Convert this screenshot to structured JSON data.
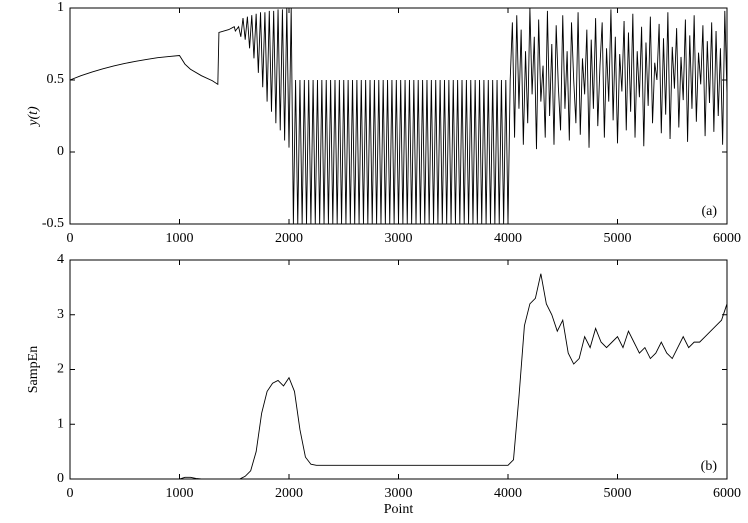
{
  "chart_data": [
    {
      "type": "line",
      "ylabel": "y(t)",
      "annotation": "(a)",
      "color": "#000000",
      "xlim": [
        0,
        6000
      ],
      "xticks": [
        0,
        1000,
        2000,
        3000,
        4000,
        5000,
        6000
      ],
      "ylim": [
        -0.5,
        1
      ],
      "yticks": [
        -0.5,
        0,
        0.5,
        1
      ],
      "x": [
        0,
        100,
        200,
        300,
        400,
        500,
        600,
        700,
        800,
        900,
        1000,
        1050,
        1100,
        1200,
        1300,
        1350,
        1360,
        1450,
        1500,
        1510,
        1540,
        1560,
        1580,
        1600,
        1620,
        1640,
        1660,
        1680,
        1700,
        1720,
        1740,
        1760,
        1780,
        1800,
        1820,
        1840,
        1860,
        1880,
        1900,
        1920,
        1940,
        1960,
        1980,
        2000,
        2020,
        2040,
        2060,
        2080,
        2100,
        2120,
        2140,
        2160,
        2180,
        2200,
        2220,
        2240,
        2260,
        2280,
        2300,
        2320,
        2340,
        2360,
        2380,
        2400,
        2420,
        2440,
        2460,
        2480,
        2500,
        2520,
        2540,
        2560,
        2580,
        2600,
        2620,
        2640,
        2660,
        2680,
        2700,
        2720,
        2740,
        2760,
        2780,
        2800,
        2820,
        2840,
        2860,
        2880,
        2900,
        2920,
        2940,
        2960,
        2980,
        3000,
        3020,
        3040,
        3060,
        3080,
        3100,
        3120,
        3140,
        3160,
        3180,
        3200,
        3220,
        3240,
        3260,
        3280,
        3300,
        3320,
        3340,
        3360,
        3380,
        3400,
        3420,
        3440,
        3460,
        3480,
        3500,
        3520,
        3540,
        3560,
        3580,
        3600,
        3620,
        3640,
        3660,
        3680,
        3700,
        3720,
        3740,
        3760,
        3780,
        3800,
        3820,
        3840,
        3860,
        3880,
        3900,
        3920,
        3940,
        3960,
        3980,
        4000,
        4020,
        4040,
        4060,
        4080,
        4100,
        4120,
        4140,
        4160,
        4180,
        4200,
        4220,
        4240,
        4260,
        4280,
        4300,
        4320,
        4340,
        4360,
        4380,
        4400,
        4420,
        4440,
        4460,
        4480,
        4500,
        4520,
        4540,
        4560,
        4580,
        4600,
        4620,
        4640,
        4660,
        4680,
        4700,
        4720,
        4740,
        4760,
        4780,
        4800,
        4820,
        4840,
        4860,
        4880,
        4900,
        4920,
        4940,
        4960,
        4980,
        5000,
        5020,
        5040,
        5060,
        5080,
        5100,
        5120,
        5140,
        5160,
        5180,
        5200,
        5220,
        5240,
        5260,
        5280,
        5300,
        5320,
        5340,
        5360,
        5380,
        5400,
        5420,
        5440,
        5460,
        5480,
        5500,
        5520,
        5540,
        5560,
        5580,
        5600,
        5620,
        5640,
        5660,
        5680,
        5700,
        5720,
        5740,
        5760,
        5780,
        5800,
        5820,
        5840,
        5860,
        5880,
        5900,
        5920,
        5940,
        5960,
        5980,
        6000
      ],
      "y": [
        0.5,
        0.53,
        0.555,
        0.578,
        0.598,
        0.615,
        0.63,
        0.643,
        0.655,
        0.663,
        0.67,
        0.61,
        0.575,
        0.53,
        0.495,
        0.47,
        0.83,
        0.85,
        0.87,
        0.84,
        0.87,
        0.8,
        0.93,
        0.78,
        0.94,
        0.72,
        0.95,
        0.65,
        0.96,
        0.55,
        0.97,
        0.45,
        0.97,
        0.35,
        0.98,
        0.28,
        0.98,
        0.2,
        0.99,
        0.15,
        0.99,
        0.08,
        1.0,
        0.03,
        1.0,
        -0.5,
        0.5,
        -0.5,
        0.5,
        -0.5,
        0.5,
        -0.5,
        0.5,
        -0.5,
        0.5,
        -0.5,
        0.5,
        -0.5,
        0.5,
        -0.5,
        0.5,
        -0.5,
        0.5,
        -0.5,
        0.5,
        -0.5,
        0.5,
        -0.5,
        0.5,
        -0.5,
        0.5,
        -0.5,
        0.5,
        -0.5,
        0.5,
        -0.5,
        0.5,
        -0.5,
        0.5,
        -0.5,
        0.5,
        -0.5,
        0.5,
        -0.5,
        0.5,
        -0.5,
        0.5,
        -0.5,
        0.5,
        -0.5,
        0.5,
        -0.5,
        0.5,
        -0.5,
        0.5,
        -0.5,
        0.5,
        -0.5,
        0.5,
        -0.5,
        0.5,
        -0.5,
        0.5,
        -0.5,
        0.5,
        -0.5,
        0.5,
        -0.5,
        0.5,
        -0.5,
        0.5,
        -0.5,
        0.5,
        -0.5,
        0.5,
        -0.5,
        0.5,
        -0.5,
        0.5,
        -0.5,
        0.5,
        -0.5,
        0.5,
        -0.5,
        0.5,
        -0.5,
        0.5,
        -0.5,
        0.5,
        -0.5,
        0.5,
        -0.5,
        0.5,
        -0.5,
        0.5,
        -0.5,
        0.5,
        -0.5,
        0.5,
        -0.5,
        0.5,
        -0.5,
        0.5,
        -0.5,
        0.5,
        0.9,
        0.1,
        0.95,
        0.3,
        0.85,
        0.05,
        0.7,
        0.2,
        1.0,
        0.4,
        0.8,
        0.02,
        0.92,
        0.35,
        0.6,
        0.1,
        0.98,
        0.25,
        0.75,
        0.05,
        0.88,
        0.45,
        0.15,
        0.95,
        0.3,
        0.7,
        0.08,
        0.9,
        0.5,
        0.2,
        0.97,
        0.12,
        0.65,
        0.4,
        0.85,
        0.03,
        0.78,
        0.3,
        0.93,
        0.18,
        0.6,
        0.9,
        0.1,
        0.72,
        0.35,
        0.99,
        0.22,
        0.8,
        0.06,
        0.68,
        0.42,
        0.91,
        0.15,
        0.83,
        0.28,
        0.96,
        0.1,
        0.7,
        0.38,
        0.87,
        0.04,
        0.76,
        0.32,
        0.94,
        0.2,
        0.62,
        0.5,
        0.89,
        0.13,
        0.79,
        0.26,
        0.97,
        0.09,
        0.73,
        0.44,
        0.86,
        0.17,
        0.66,
        0.36,
        0.92,
        0.07,
        0.81,
        0.3,
        0.95,
        0.21,
        0.69,
        0.47,
        0.88,
        0.11,
        0.77,
        0.34,
        0.9,
        0.14,
        0.84,
        0.25,
        0.72,
        0.05,
        0.98,
        0.4
      ]
    },
    {
      "type": "line",
      "ylabel": "SampEn",
      "xlabel": "Point",
      "annotation": "(b)",
      "color": "#000000",
      "xlim": [
        0,
        6000
      ],
      "xticks": [
        0,
        1000,
        2000,
        3000,
        4000,
        5000,
        6000
      ],
      "ylim": [
        0,
        4
      ],
      "yticks": [
        0,
        1,
        2,
        3,
        4
      ],
      "x": [
        0,
        50,
        100,
        150,
        200,
        250,
        300,
        350,
        400,
        450,
        500,
        550,
        600,
        650,
        700,
        750,
        800,
        850,
        900,
        950,
        1000,
        1050,
        1100,
        1150,
        1200,
        1250,
        1300,
        1350,
        1400,
        1450,
        1500,
        1550,
        1600,
        1650,
        1700,
        1750,
        1800,
        1850,
        1900,
        1950,
        2000,
        2050,
        2100,
        2150,
        2200,
        2250,
        2300,
        2350,
        2400,
        2450,
        2500,
        2550,
        2600,
        2650,
        2700,
        2750,
        2800,
        2850,
        2900,
        2950,
        3000,
        3050,
        3100,
        3150,
        3200,
        3250,
        3300,
        3350,
        3400,
        3450,
        3500,
        3550,
        3600,
        3650,
        3700,
        3750,
        3800,
        3850,
        3900,
        3950,
        4000,
        4050,
        4100,
        4150,
        4200,
        4250,
        4300,
        4350,
        4400,
        4450,
        4500,
        4550,
        4600,
        4650,
        4700,
        4750,
        4800,
        4850,
        4900,
        4950,
        5000,
        5050,
        5100,
        5150,
        5200,
        5250,
        5300,
        5350,
        5400,
        5450,
        5500,
        5550,
        5600,
        5650,
        5700,
        5750,
        5800,
        5850,
        5900,
        5950,
        6000
      ],
      "y": [
        0,
        0,
        0,
        0,
        0,
        0,
        0,
        0,
        0,
        0,
        0,
        0,
        0,
        0,
        0,
        0,
        0,
        0,
        0,
        0,
        0,
        0.03,
        0.03,
        0.01,
        0,
        0,
        0,
        0,
        0,
        0,
        0,
        0,
        0.05,
        0.15,
        0.5,
        1.2,
        1.6,
        1.75,
        1.8,
        1.7,
        1.85,
        1.6,
        0.9,
        0.4,
        0.27,
        0.25,
        0.25,
        0.25,
        0.25,
        0.25,
        0.25,
        0.25,
        0.25,
        0.25,
        0.25,
        0.25,
        0.25,
        0.25,
        0.25,
        0.25,
        0.25,
        0.25,
        0.25,
        0.25,
        0.25,
        0.25,
        0.25,
        0.25,
        0.25,
        0.25,
        0.25,
        0.25,
        0.25,
        0.25,
        0.25,
        0.25,
        0.25,
        0.25,
        0.25,
        0.25,
        0.25,
        0.35,
        1.5,
        2.8,
        3.2,
        3.3,
        3.75,
        3.2,
        3.0,
        2.7,
        2.9,
        2.3,
        2.1,
        2.2,
        2.6,
        2.4,
        2.75,
        2.5,
        2.4,
        2.5,
        2.6,
        2.4,
        2.7,
        2.5,
        2.3,
        2.4,
        2.2,
        2.3,
        2.5,
        2.3,
        2.2,
        2.4,
        2.6,
        2.4,
        2.5,
        2.5,
        2.6,
        2.7,
        2.8,
        2.9,
        3.2
      ]
    }
  ]
}
